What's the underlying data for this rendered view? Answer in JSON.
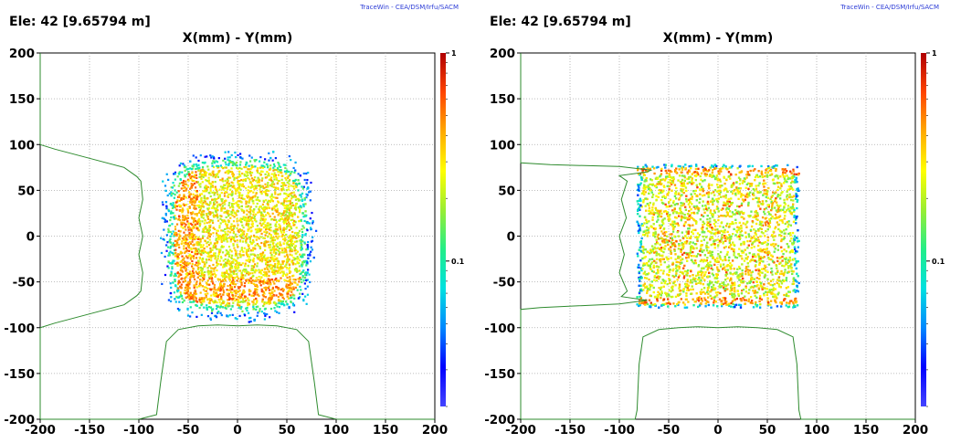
{
  "credit": "TraceWin - CEA/DSM/Irfu/SACM",
  "element_label": "Ele: 42 [9.65794 m]",
  "colors": {
    "profile": "#2e8b2e",
    "grid": "#a8a8a8",
    "colormap": [
      "#4444ff",
      "#0000ff",
      "#0088ff",
      "#00e0e0",
      "#22ee88",
      "#99ee33",
      "#ffff00",
      "#ffaa00",
      "#ff4400",
      "#b00000"
    ]
  },
  "chart_data": [
    {
      "type": "heatmap",
      "title": "X(mm) - Y(mm)",
      "xlabel": "",
      "ylabel": "",
      "xlim": [
        -200,
        200
      ],
      "ylim": [
        -200,
        200
      ],
      "xticks": [
        -200,
        -150,
        -100,
        -50,
        0,
        50,
        100,
        150,
        200
      ],
      "yticks": [
        -200,
        -150,
        -100,
        -50,
        0,
        50,
        100,
        150,
        200
      ],
      "grid": true,
      "colorbar": {
        "scale": "log",
        "range": [
          0.02,
          1
        ],
        "tick_labels": [
          "1",
          "0.1"
        ],
        "tick_values": [
          1,
          0.1
        ]
      },
      "distribution": {
        "x_half_width": 80,
        "y_half_width": 95,
        "shape": "rounded square, diffuse edges",
        "hot_zone": "vertical band x -60..-40 and lower region y -60"
      },
      "profile_x": {
        "x": [
          -200,
          -100,
          -82,
          -78,
          -72,
          -60,
          -40,
          -20,
          0,
          20,
          40,
          60,
          72,
          78,
          82,
          100,
          200
        ],
        "y": [
          -200,
          -200,
          -195,
          -160,
          -115,
          -102,
          -98,
          -97,
          -98,
          -97,
          -98,
          -102,
          -115,
          -160,
          -195,
          -200,
          -200
        ]
      },
      "profile_y": {
        "y": [
          -200,
          -100,
          -95,
          -85,
          -75,
          -65,
          -60,
          -40,
          -20,
          0,
          20,
          40,
          60,
          65,
          75,
          85,
          95,
          100,
          200
        ],
        "x": [
          -200,
          -200,
          -185,
          -150,
          -115,
          -102,
          -98,
          -96,
          -100,
          -96,
          -100,
          -96,
          -98,
          -102,
          -115,
          -150,
          -185,
          -200,
          -200
        ]
      }
    },
    {
      "type": "heatmap",
      "title": "X(mm) - Y(mm)",
      "xlabel": "",
      "ylabel": "",
      "xlim": [
        -200,
        200
      ],
      "ylim": [
        -200,
        200
      ],
      "xticks": [
        -200,
        -150,
        -100,
        -50,
        0,
        50,
        100,
        150,
        200
      ],
      "yticks": [
        -200,
        -150,
        -100,
        -50,
        0,
        50,
        100,
        150,
        200
      ],
      "grid": true,
      "colorbar": {
        "scale": "log",
        "range": [
          0.02,
          1
        ],
        "tick_labels": [
          "1",
          "0.1"
        ],
        "tick_values": [
          1,
          0.1
        ]
      },
      "distribution": {
        "x_half_width": 82,
        "y_half_width": 78,
        "shape": "sharp-edged square",
        "hot_zone": "top and bottom edges y +-70"
      },
      "profile_x": {
        "x": [
          -200,
          -84,
          -82,
          -80,
          -76,
          -60,
          -40,
          -20,
          0,
          20,
          40,
          60,
          76,
          80,
          82,
          84,
          200
        ],
        "y": [
          -200,
          -200,
          -190,
          -140,
          -110,
          -102,
          -100,
          -99,
          -100,
          -99,
          -100,
          -102,
          -110,
          -140,
          -190,
          -200,
          -200
        ]
      },
      "profile_y": {
        "y": [
          -200,
          -80,
          -78,
          -74,
          -70,
          -66,
          -60,
          -40,
          -20,
          0,
          20,
          40,
          60,
          66,
          70,
          72,
          76,
          78,
          80,
          200
        ],
        "x": [
          -200,
          -200,
          -180,
          -100,
          -72,
          -98,
          -92,
          -100,
          -95,
          -100,
          -93,
          -98,
          -92,
          -100,
          -72,
          -68,
          -100,
          -170,
          -200,
          -200
        ]
      }
    }
  ]
}
